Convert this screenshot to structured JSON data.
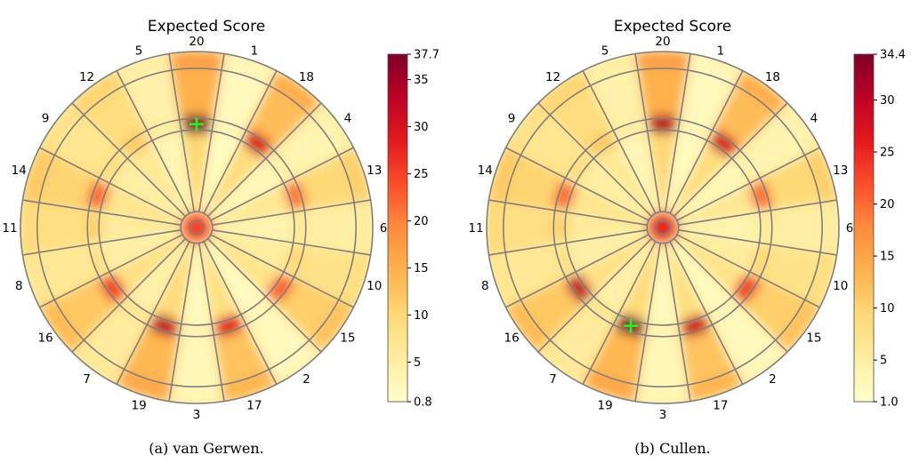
{
  "chart_data": [
    {
      "type": "heatmap",
      "title": "Expected Score",
      "caption": "(a) van Gerwen.",
      "segments_clockwise_from_top": [
        20,
        1,
        18,
        4,
        13,
        6,
        10,
        15,
        2,
        17,
        3,
        19,
        7,
        16,
        8,
        11,
        14,
        9,
        12,
        5
      ],
      "colorbar": {
        "min": 0.8,
        "max": 37.7,
        "ticks": [
          5,
          10,
          15,
          20,
          25,
          30,
          35
        ],
        "tick_labels": [
          "5",
          "10",
          "15",
          "20",
          "25",
          "30",
          "35"
        ],
        "min_label": "0.8",
        "max_label": "37.7",
        "colormap": [
          "#ffffcc",
          "#ffeda0",
          "#fed976",
          "#feb24c",
          "#fd8d3c",
          "#fc4e2a",
          "#e31a1c",
          "#bd0026",
          "#800026"
        ]
      },
      "optimal_target": {
        "segment": 20,
        "ring": "treble",
        "marker": "+",
        "color": "#22ee22"
      },
      "hotspots": [
        {
          "segment": 20,
          "ring": "treble",
          "value": 37.7
        },
        {
          "segment": 19,
          "ring": "treble",
          "value": 33
        },
        {
          "segment": 18,
          "ring": "treble",
          "value": 30
        },
        {
          "segment": 17,
          "ring": "treble",
          "value": 29
        },
        {
          "segment": 16,
          "ring": "treble",
          "value": 26
        },
        {
          "segment": 15,
          "ring": "treble",
          "value": 23
        },
        {
          "segment": 14,
          "ring": "treble",
          "value": 22
        },
        {
          "segment": 13,
          "ring": "treble",
          "value": 21
        },
        {
          "segment": 0,
          "ring": "bull",
          "value": 25
        }
      ]
    },
    {
      "type": "heatmap",
      "title": "Expected Score",
      "caption": "(b) Cullen.",
      "segments_clockwise_from_top": [
        20,
        1,
        18,
        4,
        13,
        6,
        10,
        15,
        2,
        17,
        3,
        19,
        7,
        16,
        8,
        11,
        14,
        9,
        12,
        5
      ],
      "colorbar": {
        "min": 1.0,
        "max": 34.4,
        "ticks": [
          5,
          10,
          15,
          20,
          25,
          30
        ],
        "tick_labels": [
          "5",
          "10",
          "15",
          "20",
          "25",
          "30"
        ],
        "min_label": "1.0",
        "max_label": "34.4",
        "colormap": [
          "#ffffcc",
          "#ffeda0",
          "#fed976",
          "#feb24c",
          "#fd8d3c",
          "#fc4e2a",
          "#e31a1c",
          "#bd0026",
          "#800026"
        ]
      },
      "optimal_target": {
        "segment": 19,
        "ring": "treble",
        "marker": "+",
        "color": "#22ee22"
      },
      "hotspots": [
        {
          "segment": 20,
          "ring": "treble",
          "value": 31
        },
        {
          "segment": 19,
          "ring": "treble",
          "value": 34.4
        },
        {
          "segment": 18,
          "ring": "treble",
          "value": 28
        },
        {
          "segment": 17,
          "ring": "treble",
          "value": 29
        },
        {
          "segment": 16,
          "ring": "treble",
          "value": 30
        },
        {
          "segment": 15,
          "ring": "treble",
          "value": 24
        },
        {
          "segment": 14,
          "ring": "treble",
          "value": 20
        },
        {
          "segment": 13,
          "ring": "treble",
          "value": 20
        },
        {
          "segment": 0,
          "ring": "bull",
          "value": 25
        }
      ]
    }
  ]
}
